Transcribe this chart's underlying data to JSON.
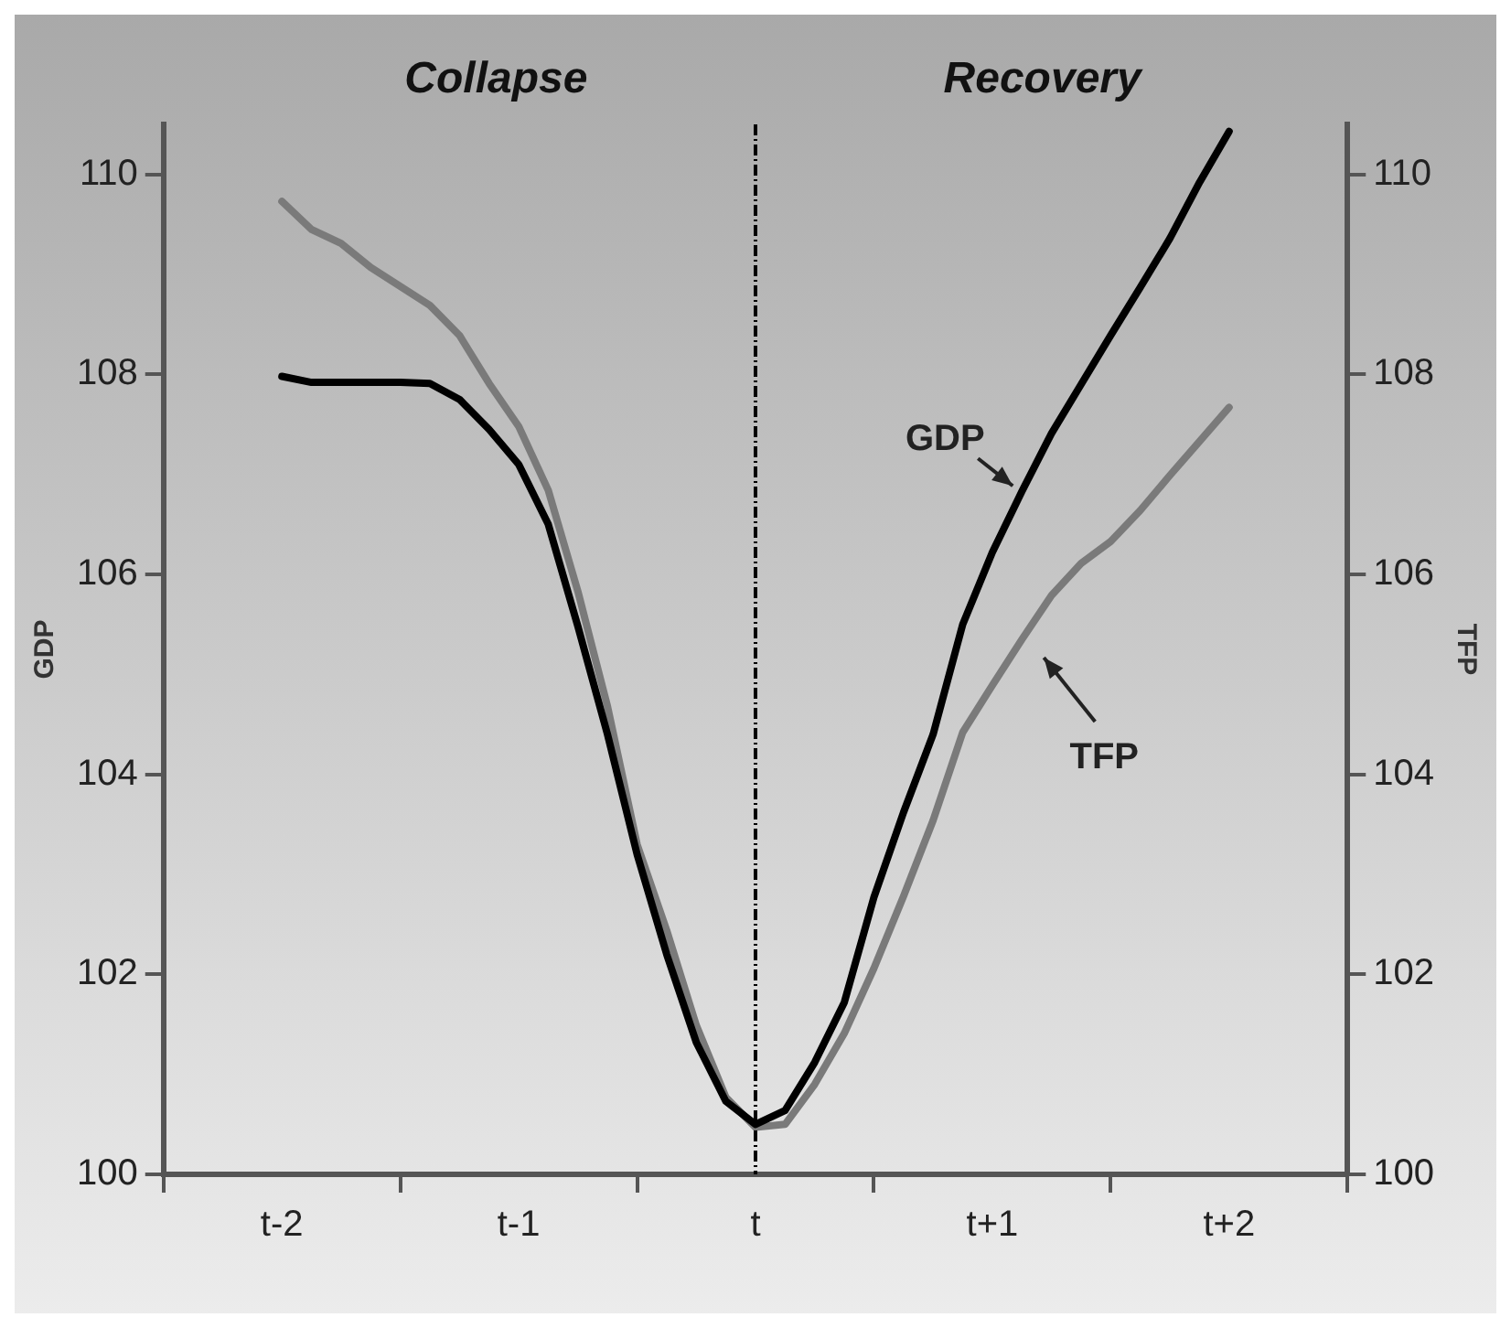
{
  "chart_data": {
    "type": "line",
    "annotations": [
      "Collapse",
      "Recovery"
    ],
    "ylabel": "GDP",
    "y2label": "TFP",
    "categories": [
      null,
      null,
      null,
      null,
      "t-2",
      null,
      null,
      null,
      null,
      null,
      null,
      null,
      "t-1",
      null,
      null,
      null,
      null,
      null,
      null,
      null,
      "t",
      null,
      null,
      null,
      null,
      null,
      null,
      null,
      "t+1",
      null,
      null,
      null,
      null,
      null,
      null,
      null,
      "t+2",
      null,
      null,
      null,
      null
    ],
    "ylim": [
      100,
      110.5
    ],
    "yticks": [
      100,
      102,
      104,
      106,
      108,
      110
    ],
    "y2lim": [
      100,
      110.5
    ],
    "y2ticks": [
      100,
      102,
      104,
      106,
      108,
      110
    ],
    "grid": false,
    "legend": false,
    "marker": "none",
    "line_style": "solid",
    "ref_lines": [
      {
        "axis": "x",
        "value": "t",
        "color": "#000000",
        "line_style": "dashed"
      }
    ],
    "series": [
      {
        "name": "GDP",
        "color": "#000000",
        "values": [
          null,
          null,
          null,
          null,
          107.98,
          107.92,
          107.92,
          107.92,
          107.92,
          107.91,
          107.75,
          107.45,
          107.1,
          106.5,
          105.48,
          104.4,
          103.2,
          102.2,
          101.32,
          100.73,
          100.5,
          100.64,
          101.12,
          101.72,
          102.77,
          103.62,
          104.4,
          105.5,
          106.22,
          106.83,
          107.41,
          107.9,
          108.39,
          108.87,
          109.36,
          109.92,
          110.43,
          null,
          null,
          null,
          null
        ]
      },
      {
        "name": "TFP",
        "color": "#7a7a7a",
        "values": [
          null,
          null,
          null,
          null,
          109.73,
          109.45,
          109.31,
          109.07,
          108.88,
          108.69,
          108.39,
          107.91,
          107.48,
          106.84,
          105.83,
          104.68,
          103.3,
          102.44,
          101.49,
          100.77,
          100.47,
          100.5,
          100.9,
          101.41,
          102.06,
          102.78,
          103.54,
          104.42,
          104.89,
          105.35,
          105.79,
          106.11,
          106.33,
          106.64,
          106.99,
          107.33,
          107.67,
          null,
          null,
          null,
          null
        ]
      }
    ]
  }
}
